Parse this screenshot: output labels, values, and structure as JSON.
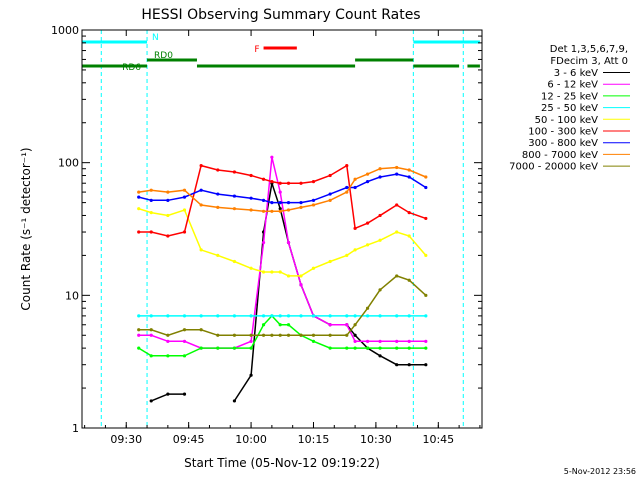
{
  "chart_data": {
    "type": "line",
    "title": "HESSI Observing Summary Count Rates",
    "xlabel": "Start Time (05-Nov-12 09:19:22)",
    "ylabel": "Count Rate (s⁻¹ detector⁻¹)",
    "y_scale": "log",
    "ylim": [
      1,
      1000
    ],
    "xlim": [
      "09:19:22",
      "10:55:30"
    ],
    "grid": false,
    "legend_position": "right",
    "x_ticks": [
      "09:30",
      "09:45",
      "10:00",
      "10:15",
      "10:30",
      "10:45"
    ],
    "y_ticks": [
      "1",
      "10",
      "100",
      "1000"
    ],
    "legend_header": [
      "Det 1,3,5,6,7,9,",
      "FDecim 3, Att 0"
    ],
    "attenuator_lines_cyan": [
      "09:24",
      "09:35",
      "10:39",
      "10:51"
    ],
    "flags": [
      {
        "label": "N",
        "color": "#00ffff",
        "segments": [
          [
            "09:19",
            "09:35"
          ],
          [
            "10:39",
            "10:55"
          ]
        ]
      },
      {
        "label": "F",
        "color": "#ff0000",
        "segments": [
          [
            "10:03",
            "10:11"
          ]
        ]
      },
      {
        "label": "RD0",
        "color": "#008000",
        "segments": [
          [
            "09:35",
            "09:47"
          ],
          [
            "10:25",
            "10:39"
          ]
        ]
      },
      {
        "label": "RD6",
        "color": "#008000",
        "segments": [
          [
            "09:19",
            "09:35"
          ],
          [
            "09:47",
            "10:25"
          ],
          [
            "10:39",
            "10:50"
          ],
          [
            "10:52",
            "10:55"
          ]
        ]
      }
    ],
    "x": [
      "09:33",
      "09:36",
      "09:40",
      "09:44",
      "09:48",
      "09:52",
      "09:56",
      "10:00",
      "10:03",
      "10:05",
      "10:07",
      "10:09",
      "10:12",
      "10:15",
      "10:19",
      "10:23",
      "10:25",
      "10:28",
      "10:31",
      "10:35",
      "10:38",
      "10:42"
    ],
    "series": [
      {
        "name": "3 - 6 keV",
        "color": "#000000",
        "values": [
          null,
          1.6,
          1.8,
          1.8,
          null,
          null,
          1.6,
          2.5,
          30,
          70,
          45,
          25,
          12,
          7,
          6,
          6,
          5,
          4,
          3.5,
          3,
          3,
          3
        ]
      },
      {
        "name": "6 - 12 keV",
        "color": "#ff00ff",
        "values": [
          5,
          5,
          4.5,
          4.5,
          4,
          4,
          4,
          4.5,
          25,
          110,
          60,
          25,
          12,
          7,
          6,
          6,
          4.5,
          4.5,
          4.5,
          4.5,
          4.5,
          4.5
        ]
      },
      {
        "name": "12 - 25 keV",
        "color": "#00ff00",
        "values": [
          4,
          3.5,
          3.5,
          3.5,
          4,
          4,
          4,
          4,
          6,
          7,
          6,
          6,
          5,
          4.5,
          4,
          4,
          4,
          4,
          4,
          4,
          4,
          4
        ]
      },
      {
        "name": "25 - 50 keV",
        "color": "#00ffff",
        "values": [
          7,
          7,
          7,
          7,
          7,
          7,
          7,
          7,
          7,
          7,
          7,
          7,
          7,
          7,
          7,
          7,
          7,
          7,
          7,
          7,
          7,
          7
        ]
      },
      {
        "name": "50 - 100 keV",
        "color": "#ffff00",
        "values": [
          45,
          42,
          40,
          44,
          22,
          20,
          18,
          16,
          15,
          15,
          15,
          14,
          14,
          16,
          18,
          20,
          22,
          24,
          26,
          30,
          28,
          20
        ]
      },
      {
        "name": "100 - 300 keV",
        "color": "#ff0000",
        "values": [
          30,
          30,
          28,
          30,
          95,
          88,
          85,
          80,
          75,
          72,
          70,
          70,
          70,
          72,
          80,
          95,
          32,
          35,
          40,
          48,
          42,
          38
        ]
      },
      {
        "name": "300 - 800 keV",
        "color": "#0000ff",
        "values": [
          55,
          52,
          52,
          55,
          62,
          58,
          56,
          54,
          52,
          50,
          50,
          50,
          50,
          52,
          58,
          65,
          65,
          72,
          78,
          82,
          78,
          65
        ]
      },
      {
        "name": "800 - 7000 keV",
        "color": "#ff8000",
        "values": [
          60,
          62,
          60,
          62,
          48,
          46,
          45,
          44,
          43,
          43,
          43,
          44,
          46,
          48,
          52,
          60,
          75,
          82,
          90,
          92,
          88,
          78
        ]
      },
      {
        "name": "7000 - 20000 keV",
        "color": "#808000",
        "values": [
          5.5,
          5.5,
          5,
          5.5,
          5.5,
          5,
          5,
          5,
          5,
          5,
          5,
          5,
          5,
          5,
          5,
          5,
          6,
          8,
          11,
          14,
          13,
          10
        ]
      }
    ],
    "footer_date": "5-Nov-2012 23:56"
  }
}
